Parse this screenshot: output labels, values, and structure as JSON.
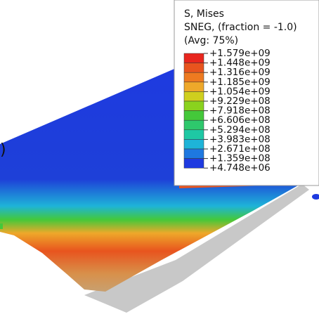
{
  "panel_label": ")",
  "legend": {
    "title": [
      "S, Mises",
      "SNEG, (fraction = -1.0)",
      "(Avg: 75%)"
    ],
    "labels": [
      "+1.579e+09",
      "+1.448e+09",
      "+1.316e+09",
      "+1.185e+09",
      "+1.054e+09",
      "+9.229e+08",
      "+7.918e+08",
      "+6.606e+08",
      "+5.294e+08",
      "+3.983e+08",
      "+2.671e+08",
      "+1.359e+08",
      "+4.748e+06"
    ],
    "colors": [
      "#e8261e",
      "#e8541e",
      "#ee7a20",
      "#eea82a",
      "#cfcf1e",
      "#8ad21e",
      "#44c83a",
      "#2ec86c",
      "#1ec8a4",
      "#1eb4d8",
      "#1e78e0",
      "#1e3ae0"
    ]
  }
}
